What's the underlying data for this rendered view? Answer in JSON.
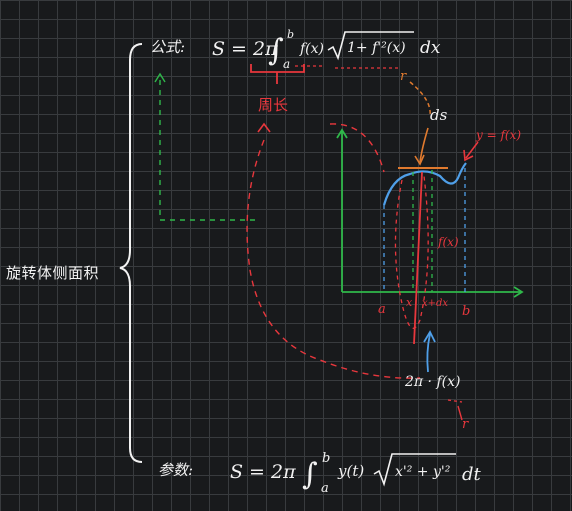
{
  "topic": "旋转体侧面积",
  "formula_top": {
    "label": "公式:",
    "lhs": "S = 2π",
    "lower": "a",
    "upper": "b",
    "integrand_f": "f(x)",
    "root_content": "1+ f'²(x)",
    "dx": "dx"
  },
  "formula_bottom": {
    "label": "参数:",
    "lhs": "S = 2π",
    "lower": "a",
    "upper": "b",
    "integrand_y": "y(t)",
    "root_content": "x'² + y'²",
    "dt": "dt"
  },
  "annotations": {
    "perimeter": "周长",
    "ds": "ds",
    "curve": "y = f(x)",
    "fx_height": "f(x)",
    "two_pi_fx": "2π · f(x)",
    "r_top": "r",
    "r_bottom": "r"
  },
  "axis_labels": {
    "a": "a",
    "x": "x",
    "x_dx": "x+dx",
    "b": "b"
  },
  "colors": {
    "chalk_white": "#f2f2f2",
    "red": "#e8373d",
    "green": "#2fb84a",
    "blue": "#4f9fe8",
    "orange": "#e07a2e"
  }
}
